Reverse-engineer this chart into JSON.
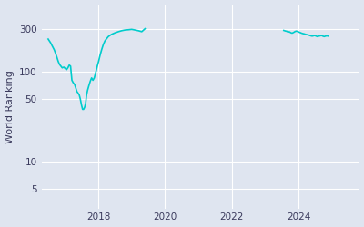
{
  "ylabel": "World Ranking",
  "background_color": "#dfe5f0",
  "line_color": "#00cccc",
  "line_width": 1.2,
  "yticks": [
    5,
    10,
    50,
    100,
    300
  ],
  "ytick_labels": [
    "5",
    "10",
    "50",
    "100",
    "300"
  ],
  "xlim_start": 2016.3,
  "xlim_end": 2025.8,
  "ylim_bottom": 3,
  "ylim_top": 550,
  "segment1_dates": [
    2016.5,
    2016.57,
    2016.63,
    2016.68,
    2016.72,
    2016.76,
    2016.8,
    2016.84,
    2016.88,
    2016.92,
    2016.97,
    2017.01,
    2017.05,
    2017.09,
    2017.13,
    2017.17,
    2017.21,
    2017.25,
    2017.29,
    2017.33,
    2017.36,
    2017.39,
    2017.43,
    2017.46,
    2017.5,
    2017.53,
    2017.56,
    2017.59,
    2017.62,
    2017.65,
    2017.68,
    2017.72,
    2017.76,
    2017.8,
    2017.84,
    2017.88,
    2017.93,
    2017.97,
    2018.01,
    2018.05,
    2018.1,
    2018.15,
    2018.2,
    2018.3,
    2018.4,
    2018.5,
    2018.6,
    2018.7,
    2018.8,
    2018.9,
    2019.0,
    2019.1,
    2019.2,
    2019.3,
    2019.4
  ],
  "segment1_rankings": [
    230,
    210,
    190,
    175,
    160,
    145,
    130,
    120,
    115,
    110,
    112,
    108,
    105,
    110,
    118,
    115,
    80,
    75,
    72,
    65,
    60,
    58,
    55,
    50,
    42,
    38,
    38,
    40,
    44,
    55,
    62,
    70,
    78,
    85,
    80,
    85,
    100,
    115,
    130,
    150,
    175,
    200,
    220,
    245,
    260,
    270,
    278,
    285,
    290,
    292,
    295,
    290,
    285,
    278,
    300
  ],
  "segment2_dates": [
    2023.55,
    2023.6,
    2023.65,
    2023.68,
    2023.71,
    2023.74,
    2023.77,
    2023.8,
    2023.84,
    2023.88,
    2023.92,
    2023.96,
    2024.0,
    2024.04,
    2024.08,
    2024.12,
    2024.16,
    2024.2,
    2024.24,
    2024.28,
    2024.32,
    2024.36,
    2024.4,
    2024.44,
    2024.48,
    2024.52,
    2024.56,
    2024.6,
    2024.64,
    2024.68,
    2024.72,
    2024.76,
    2024.8,
    2024.84,
    2024.88
  ],
  "segment2_rankings": [
    287,
    283,
    280,
    275,
    278,
    274,
    270,
    268,
    272,
    278,
    282,
    280,
    276,
    272,
    268,
    265,
    263,
    260,
    258,
    256,
    253,
    250,
    248,
    250,
    252,
    248,
    245,
    248,
    250,
    252,
    248,
    245,
    248,
    250,
    248
  ],
  "xticks": [
    2018,
    2020,
    2022,
    2024
  ],
  "grid_color": "#ffffff",
  "tick_color": "#3a3a5c",
  "tick_fontsize": 7.5
}
